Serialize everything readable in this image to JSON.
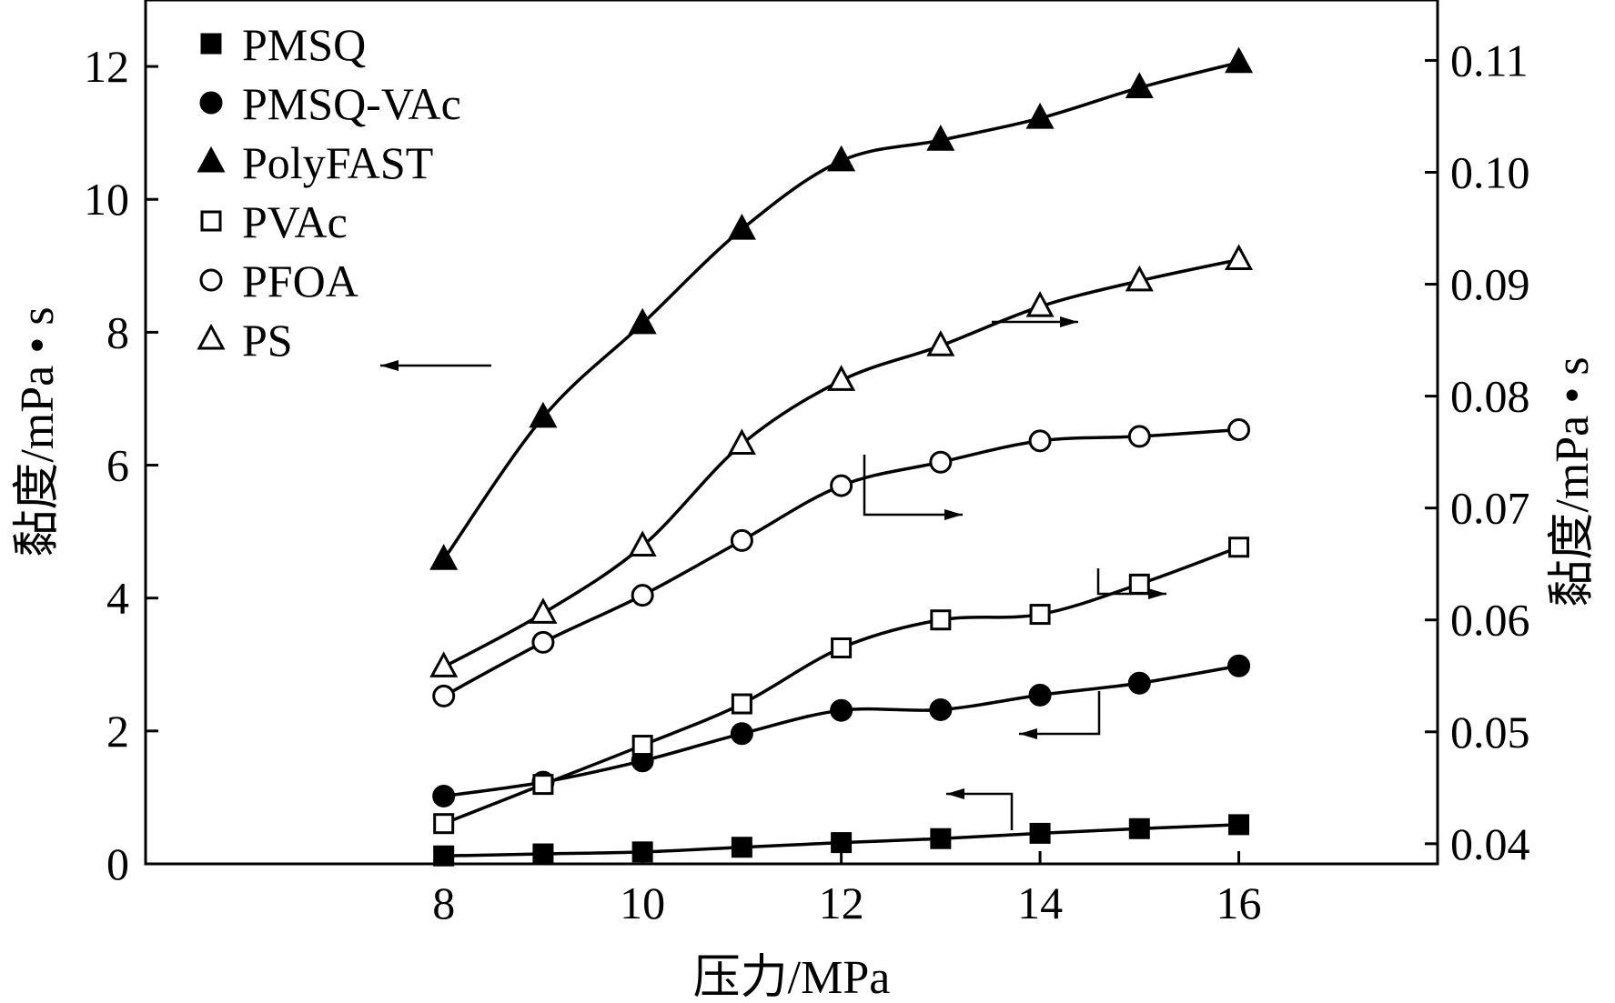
{
  "chart_data": {
    "type": "line",
    "xlabel": "压力/MPa",
    "ylabel_left": "黏度/mPa • s",
    "ylabel_right": "黏度/mPa • s",
    "xlim": [
      5.0,
      18.0
    ],
    "ylim_left": [
      0,
      13
    ],
    "ylim_right": [
      0.0382,
      0.1154
    ],
    "xticks": [
      8,
      10,
      12,
      14,
      16
    ],
    "xtick_labels": [
      "8",
      "10",
      "12",
      "14",
      "16"
    ],
    "yticks_left": [
      0,
      2,
      4,
      6,
      8,
      10,
      12
    ],
    "ytick_labels_left": [
      "0",
      "2",
      "4",
      "6",
      "8",
      "10",
      "12"
    ],
    "yticks_right": [
      0.04,
      0.05,
      0.06,
      0.07,
      0.08,
      0.09,
      0.1,
      0.11
    ],
    "ytick_labels_right": [
      "0.04",
      "0.05",
      "0.06",
      "0.07",
      "0.08",
      "0.09",
      "0.10",
      "0.11"
    ],
    "x": [
      8,
      9,
      10,
      11,
      12,
      13,
      14,
      15,
      16
    ],
    "series": [
      {
        "name": "PMSQ",
        "marker": "square-filled",
        "axis": "left",
        "values": [
          0.12,
          0.15,
          0.18,
          0.25,
          0.32,
          0.38,
          0.46,
          0.53,
          0.59
        ]
      },
      {
        "name": "PMSQ-VAc",
        "marker": "circle-filled",
        "axis": "left",
        "values": [
          1.02,
          1.23,
          1.55,
          1.96,
          2.31,
          2.32,
          2.54,
          2.72,
          2.98
        ]
      },
      {
        "name": "PolyFAST",
        "marker": "triangle-filled",
        "axis": "left",
        "values": [
          4.58,
          6.72,
          8.13,
          9.55,
          10.58,
          10.89,
          11.22,
          11.68,
          12.06
        ]
      },
      {
        "name": "PVAc",
        "marker": "square-open",
        "axis": "right",
        "values": [
          0.0418,
          0.0453,
          0.0488,
          0.0525,
          0.0575,
          0.06,
          0.0605,
          0.0632,
          0.0665
        ]
      },
      {
        "name": "PFOA",
        "marker": "circle-open",
        "axis": "right",
        "values": [
          0.0532,
          0.058,
          0.0622,
          0.0671,
          0.072,
          0.0741,
          0.076,
          0.0764,
          0.077
        ]
      },
      {
        "name": "PS",
        "marker": "triangle-open",
        "axis": "right",
        "values": [
          0.0558,
          0.0606,
          0.0666,
          0.0757,
          0.0814,
          0.0845,
          0.088,
          0.0903,
          0.0922
        ]
      }
    ],
    "annotations": [
      {
        "target": "PolyFAST",
        "direction": "left"
      },
      {
        "target": "PS",
        "direction": "right"
      },
      {
        "target": "PFOA",
        "direction": "right"
      },
      {
        "target": "PVAc",
        "direction": "right"
      },
      {
        "target": "PMSQ-VAc",
        "direction": "left"
      },
      {
        "target": "PMSQ",
        "direction": "left"
      }
    ],
    "legend_position": "top-left",
    "grid": false
  }
}
